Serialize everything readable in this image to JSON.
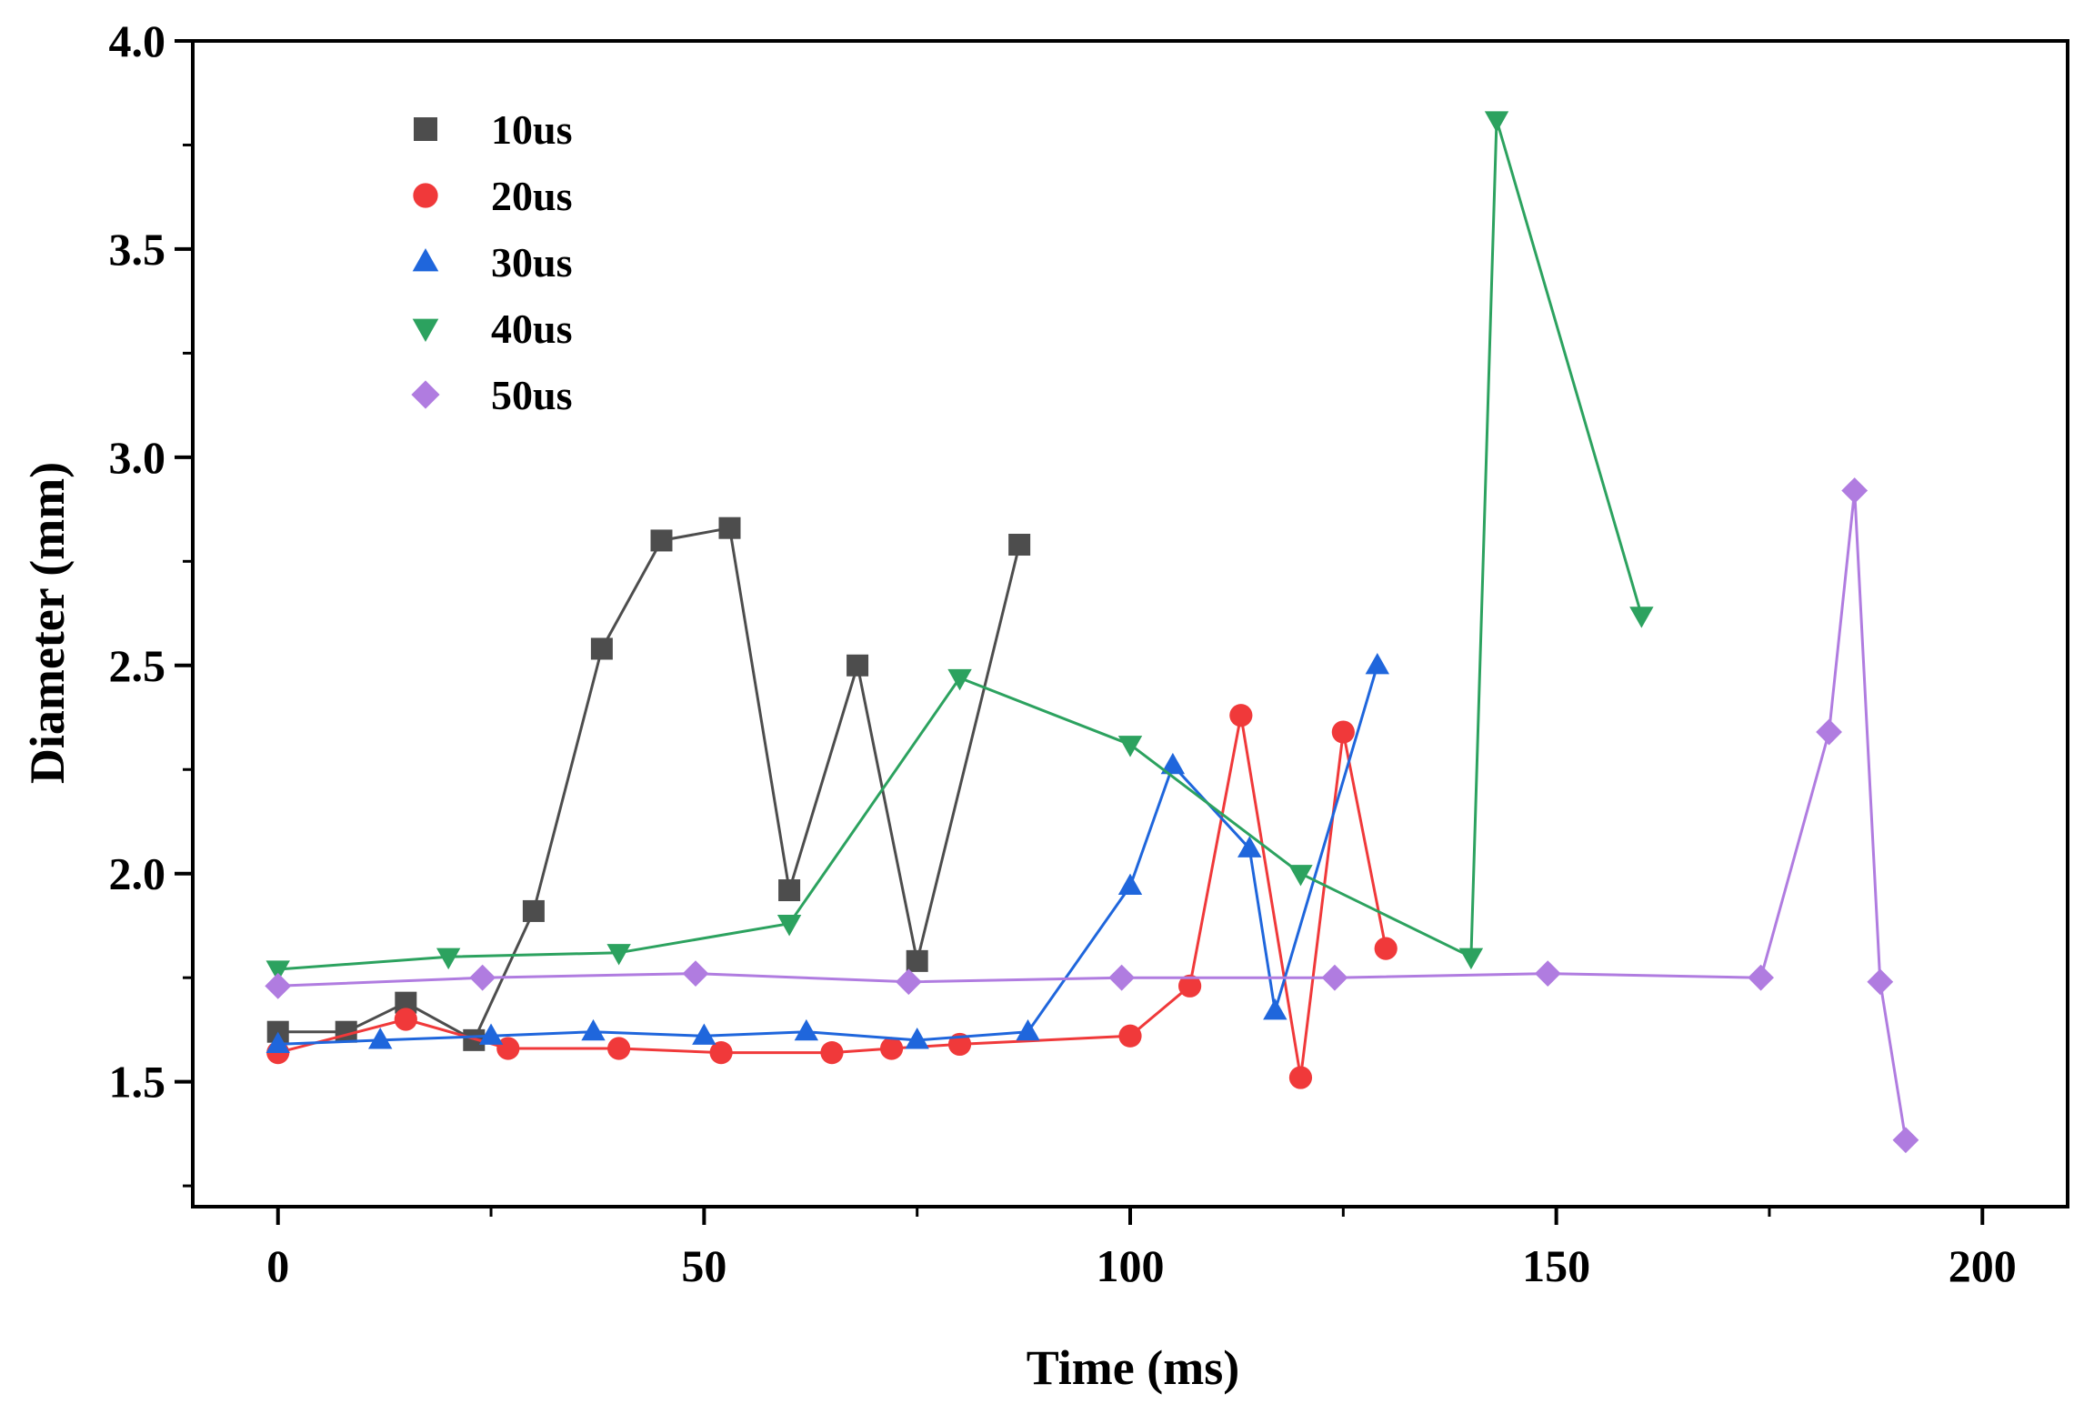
{
  "chart_data": {
    "type": "line",
    "title": "",
    "xlabel": "Time (ms)",
    "ylabel": "Diameter (mm)",
    "xlim": [
      -10,
      210
    ],
    "ylim": [
      1.2,
      4.0
    ],
    "xticks": [
      0,
      50,
      100,
      150,
      200
    ],
    "xtick_labels": [
      "0",
      "50",
      "100",
      "150",
      "200"
    ],
    "yticks": [
      1.5,
      2.0,
      2.5,
      3.0,
      3.5,
      4.0
    ],
    "ytick_labels": [
      "1.5",
      "2.0",
      "2.5",
      "3.0",
      "3.5",
      "4.0"
    ],
    "grid": false,
    "legend_position": "top-left",
    "series": [
      {
        "name": "10us",
        "color": "#4d4d4d",
        "marker": "square",
        "x": [
          0,
          8,
          15,
          23,
          30,
          38,
          45,
          53,
          60,
          68,
          75,
          87
        ],
        "y": [
          1.62,
          1.62,
          1.69,
          1.6,
          1.91,
          2.54,
          2.8,
          2.83,
          1.96,
          2.5,
          1.79,
          2.79
        ]
      },
      {
        "name": "20us",
        "color": "#f0393a",
        "marker": "circle",
        "x": [
          0,
          15,
          27,
          40,
          52,
          65,
          72,
          80,
          100,
          107,
          113,
          120,
          125,
          130
        ],
        "y": [
          1.57,
          1.65,
          1.58,
          1.58,
          1.57,
          1.57,
          1.58,
          1.59,
          1.61,
          1.73,
          2.38,
          1.51,
          2.34,
          1.82
        ]
      },
      {
        "name": "30us",
        "color": "#1f66dc",
        "marker": "triangle-up",
        "x": [
          0,
          12,
          25,
          37,
          50,
          62,
          75,
          88,
          100,
          105,
          114,
          117,
          129
        ],
        "y": [
          1.59,
          1.6,
          1.61,
          1.62,
          1.61,
          1.62,
          1.6,
          1.62,
          1.97,
          2.26,
          2.06,
          1.67,
          2.5
        ]
      },
      {
        "name": "40us",
        "color": "#2ca25f",
        "marker": "triangle-down",
        "x": [
          0,
          20,
          40,
          60,
          80,
          100,
          120,
          140,
          143,
          160
        ],
        "y": [
          1.77,
          1.8,
          1.81,
          1.88,
          2.47,
          2.31,
          2.0,
          1.8,
          3.81,
          2.62
        ]
      },
      {
        "name": "50us",
        "color": "#b07ce0",
        "marker": "diamond",
        "x": [
          0,
          24,
          49,
          74,
          99,
          124,
          149,
          174,
          182,
          185,
          188,
          191
        ],
        "y": [
          1.73,
          1.75,
          1.76,
          1.74,
          1.75,
          1.75,
          1.76,
          1.75,
          2.34,
          2.92,
          1.74,
          1.36
        ]
      }
    ]
  }
}
